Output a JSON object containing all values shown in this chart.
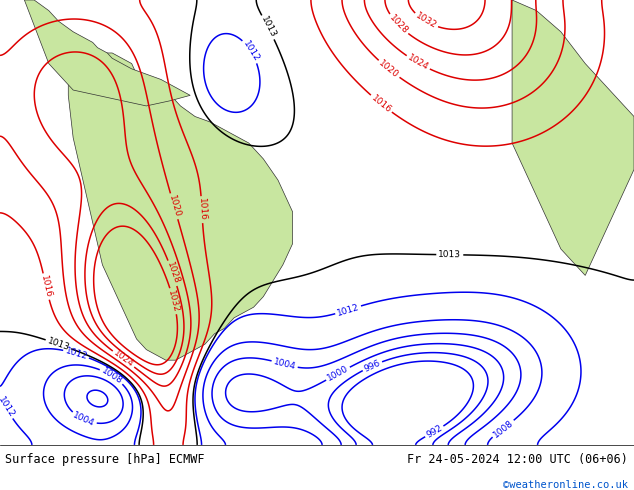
{
  "title_left": "Surface pressure [hPa] ECMWF",
  "title_right": "Fr 24-05-2024 12:00 UTC (06+06)",
  "watermark": "©weatheronline.co.uk",
  "ocean_color": "#e8eef4",
  "land_color": "#c8e6a0",
  "land_edge_color": "#333333",
  "bottom_bar_color": "#e0e0e0",
  "text_color_black": "#000000",
  "text_color_blue": "#0055cc",
  "contour_blue": "#0000ee",
  "contour_red": "#dd0000",
  "contour_black": "#000000",
  "fig_width": 6.34,
  "fig_height": 4.9,
  "dpi": 100
}
